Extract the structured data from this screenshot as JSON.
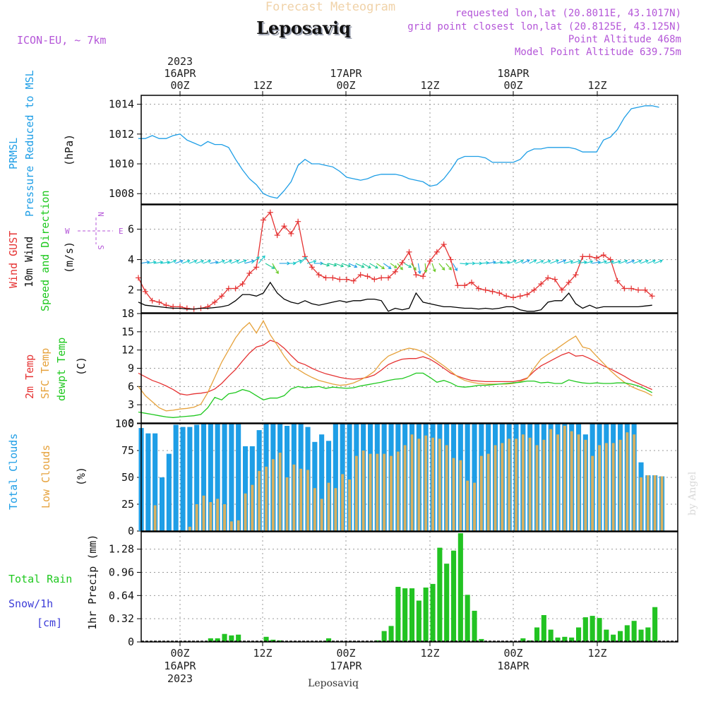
{
  "header": {
    "app_title": "Forecast Meteogram",
    "location": "Leposaviq",
    "model": "ICON-EU, ~ 7km",
    "requested": "requested lon,lat (20.8011E, 43.1017N)",
    "grid": "grid point closest lon,lat (20.8125E, 43.125N)",
    "point_alt": "Point Altitude 468m",
    "model_alt": "Model Point Altitude 639.75m",
    "footer": "Leposaviq",
    "credit": "by Angel"
  },
  "colors": {
    "pressure": "#1e9ee6",
    "gust": "#e53232",
    "wind": "#000000",
    "temp2m": "#e53232",
    "sfc": "#e6a23c",
    "dewpt": "#1ec81e",
    "total_clouds": "#1e9ee6",
    "low_clouds": "#d8b060",
    "rain": "#22c322",
    "snow": "#3c3cd8",
    "grid": "#999999"
  },
  "chart_data": [
    {
      "name": "prmsl",
      "type": "line",
      "ylabel": "(hPa)",
      "side_labels": [
        "PRMSL",
        "Pressure Reduced to MSL"
      ],
      "ylim": [
        1007.3,
        1014.6
      ],
      "yticks": [
        "1008",
        "1010",
        "1012",
        "1014"
      ],
      "ytick_values": [
        1008,
        1010,
        1012,
        1014
      ],
      "series": [
        {
          "name": "Pressure Reduced to MSL",
          "color_key": "pressure",
          "values": [
            1011.7,
            1011.7,
            1011.9,
            1011.7,
            1011.7,
            1011.9,
            1012.0,
            1011.6,
            1011.4,
            1011.2,
            1011.5,
            1011.3,
            1011.3,
            1011.1,
            1010.3,
            1009.6,
            1009.0,
            1008.6,
            1008.0,
            1007.8,
            1007.7,
            1008.2,
            1008.8,
            1009.9,
            1010.3,
            1010.0,
            1010.0,
            1009.9,
            1009.8,
            1009.5,
            1009.1,
            1009.0,
            1008.9,
            1009.0,
            1009.2,
            1009.3,
            1009.3,
            1009.3,
            1009.2,
            1009.0,
            1008.9,
            1008.8,
            1008.5,
            1008.6,
            1009.0,
            1009.6,
            1010.3,
            1010.5,
            1010.5,
            1010.5,
            1010.4,
            1010.1,
            1010.1,
            1010.1,
            1010.1,
            1010.3,
            1010.8,
            1011.0,
            1011.0,
            1011.1,
            1011.1,
            1011.1,
            1011.1,
            1011.0,
            1010.8,
            1010.8,
            1010.8,
            1011.6,
            1011.8,
            1012.3,
            1013.1,
            1013.7,
            1013.8,
            1013.9,
            1013.9,
            1013.8
          ]
        }
      ]
    },
    {
      "name": "wind",
      "type": "line",
      "ylabel": "(m/s)",
      "side_labels": [
        "Wind GUST",
        "10m Wind",
        "Speed and Direction"
      ],
      "compass": {
        "n": "N",
        "s": "S",
        "e": "E",
        "w": "W"
      },
      "ylim": [
        0.5,
        7.6
      ],
      "yticks": [
        "2",
        "4",
        "6"
      ],
      "ytick_values": [
        2,
        4,
        6
      ],
      "series": [
        {
          "name": "Wind GUST",
          "color_key": "gust",
          "values": [
            2.8,
            1.9,
            1.3,
            1.2,
            1.0,
            0.9,
            0.9,
            0.8,
            0.75,
            0.8,
            0.9,
            1.2,
            1.6,
            2.1,
            2.1,
            2.4,
            3.1,
            3.5,
            6.6,
            7.1,
            5.6,
            6.2,
            5.7,
            6.5,
            4.2,
            3.5,
            3.0,
            2.8,
            2.8,
            2.7,
            2.7,
            2.6,
            3.0,
            2.9,
            2.7,
            2.8,
            2.8,
            3.2,
            3.8,
            4.5,
            3.0,
            2.9,
            3.9,
            4.5,
            5.0,
            4.0,
            2.3,
            2.3,
            2.5,
            2.1,
            2.0,
            1.9,
            1.8,
            1.6,
            1.5,
            1.6,
            1.7,
            2.0,
            2.4,
            2.8,
            2.7,
            2.0,
            2.5,
            3.0,
            4.2,
            4.2,
            4.1,
            4.3,
            4.0,
            2.6,
            2.1,
            2.1,
            2.0,
            2.0,
            1.6
          ]
        },
        {
          "name": "10m Wind",
          "color_key": "wind",
          "values": [
            1.2,
            1.0,
            0.95,
            0.9,
            0.85,
            0.8,
            0.8,
            0.75,
            0.75,
            0.8,
            0.8,
            0.85,
            0.9,
            1.0,
            1.3,
            1.7,
            1.7,
            1.6,
            1.8,
            2.5,
            1.8,
            1.4,
            1.2,
            1.1,
            1.3,
            1.1,
            1.0,
            1.1,
            1.2,
            1.3,
            1.2,
            1.3,
            1.3,
            1.4,
            1.4,
            1.3,
            0.6,
            0.8,
            0.7,
            0.8,
            1.8,
            1.2,
            1.1,
            1.0,
            0.9,
            0.9,
            0.85,
            0.8,
            0.8,
            0.75,
            0.8,
            0.75,
            0.8,
            0.9,
            0.9,
            0.7,
            0.6,
            0.6,
            0.7,
            1.2,
            1.3,
            1.3,
            1.8,
            1.1,
            0.8,
            1.0,
            0.8,
            0.9,
            0.9,
            0.9,
            0.9,
            0.9,
            0.9,
            0.95,
            1.0
          ]
        }
      ],
      "direction_deg": [
        260,
        260,
        260,
        260,
        250,
        250,
        250,
        250,
        250,
        250,
        260,
        250,
        250,
        250,
        250,
        255,
        230,
        220,
        300,
        330,
        270,
        270,
        250,
        225,
        255,
        270,
        285,
        285,
        290,
        290,
        295,
        295,
        300,
        300,
        305,
        305,
        305,
        320,
        300,
        325,
        350,
        355,
        340,
        320,
        320,
        330,
        275,
        270,
        270,
        265,
        260,
        260,
        260,
        250,
        250,
        245,
        245,
        250,
        250,
        250,
        250,
        255,
        255,
        260,
        255,
        260,
        255,
        255,
        255,
        250,
        250,
        250,
        250,
        250,
        250
      ]
    },
    {
      "name": "temperature",
      "type": "line",
      "ylabel": "(C)",
      "side_labels": [
        "2m Temp",
        "SFC Temp",
        "dewpt Temp"
      ],
      "ylim": [
        0,
        18
      ],
      "yticks": [
        "0",
        "3",
        "6",
        "9",
        "12",
        "15",
        "18"
      ],
      "ytick_values": [
        0,
        3,
        6,
        9,
        12,
        15,
        18
      ],
      "series": [
        {
          "name": "2m Temp",
          "color_key": "temp2m",
          "values": [
            8.2,
            7.6,
            7.0,
            6.6,
            6.1,
            5.5,
            4.8,
            4.6,
            4.8,
            4.9,
            5.1,
            5.6,
            6.5,
            7.7,
            8.8,
            10.2,
            11.5,
            12.5,
            12.8,
            13.6,
            13.2,
            12.3,
            11.1,
            10.0,
            9.6,
            9.0,
            8.5,
            8.1,
            7.8,
            7.5,
            7.3,
            7.2,
            7.3,
            7.5,
            7.9,
            8.7,
            9.6,
            10.1,
            10.5,
            10.6,
            10.6,
            10.9,
            10.5,
            9.8,
            9.0,
            8.2,
            7.7,
            7.3,
            7.0,
            6.9,
            6.8,
            6.8,
            6.8,
            6.8,
            6.8,
            7.0,
            7.4,
            8.5,
            9.4,
            10.0,
            10.6,
            11.2,
            11.6,
            11.0,
            11.1,
            10.6,
            10.0,
            9.4,
            8.9,
            8.3,
            7.7,
            7.0,
            6.5,
            6.0,
            5.5
          ]
        },
        {
          "name": "SFC Temp",
          "color_key": "sfc",
          "values": [
            6.0,
            4.5,
            3.5,
            2.5,
            2.0,
            2.1,
            2.3,
            2.4,
            2.6,
            3.1,
            5.0,
            7.5,
            10.0,
            12.0,
            14.0,
            15.5,
            16.5,
            14.8,
            16.8,
            14.5,
            12.8,
            11.0,
            9.5,
            8.8,
            8.1,
            7.5,
            7.0,
            6.7,
            6.4,
            6.2,
            6.3,
            6.6,
            7.1,
            7.7,
            8.5,
            10.0,
            11.0,
            11.5,
            12.0,
            12.3,
            12.1,
            11.7,
            11.0,
            10.2,
            9.4,
            8.5,
            7.6,
            7.0,
            6.7,
            6.5,
            6.4,
            6.4,
            6.4,
            6.4,
            6.5,
            6.8,
            7.3,
            9.0,
            10.5,
            11.3,
            12.0,
            12.8,
            13.6,
            14.3,
            12.5,
            12.2,
            11.0,
            9.8,
            8.6,
            7.6,
            6.7,
            6.0,
            5.5,
            5.1,
            4.5
          ]
        },
        {
          "name": "dewpt Temp",
          "color_key": "dewpt",
          "values": [
            1.8,
            1.6,
            1.4,
            1.2,
            1.0,
            0.9,
            1.0,
            1.1,
            1.2,
            1.4,
            2.5,
            4.2,
            3.8,
            4.8,
            5.0,
            5.5,
            5.2,
            4.5,
            3.8,
            4.1,
            4.1,
            4.5,
            5.6,
            6.0,
            5.8,
            5.9,
            6.0,
            5.7,
            5.9,
            5.8,
            5.7,
            5.8,
            6.1,
            6.3,
            6.5,
            6.7,
            7.0,
            7.2,
            7.3,
            7.7,
            8.2,
            8.2,
            7.5,
            6.7,
            7.0,
            6.6,
            6.0,
            5.9,
            6.0,
            6.2,
            6.2,
            6.3,
            6.4,
            6.5,
            6.6,
            6.7,
            6.9,
            6.9,
            6.6,
            6.7,
            6.5,
            6.5,
            7.1,
            6.8,
            6.6,
            6.5,
            6.6,
            6.5,
            6.5,
            6.6,
            6.6,
            6.4,
            6.1,
            5.6,
            5.0
          ]
        }
      ]
    },
    {
      "name": "clouds",
      "type": "bar",
      "ylabel": "(%)",
      "side_labels": [
        "Total Clouds",
        "Low Clouds"
      ],
      "ylim": [
        0,
        100
      ],
      "yticks": [
        "0",
        "25",
        "50",
        "75",
        "100"
      ],
      "ytick_values": [
        0,
        25,
        50,
        75,
        100
      ],
      "series": [
        {
          "name": "Total Clouds",
          "color_key": "total_clouds",
          "values": [
            96,
            91,
            91,
            50,
            72,
            99,
            97,
            97,
            99,
            100,
            100,
            100,
            100,
            100,
            100,
            79,
            79,
            94,
            100,
            100,
            100,
            98,
            100,
            100,
            97,
            83,
            90,
            84,
            100,
            100,
            100,
            100,
            100,
            100,
            100,
            100,
            100,
            100,
            100,
            100,
            100,
            100,
            100,
            100,
            100,
            100,
            100,
            100,
            100,
            100,
            100,
            100,
            100,
            100,
            100,
            100,
            100,
            100,
            100,
            100,
            100,
            100,
            100,
            100,
            90,
            100,
            100,
            100,
            100,
            100,
            100,
            100,
            64,
            52,
            52,
            51
          ]
        },
        {
          "name": "Low Clouds",
          "color_key": "low_clouds",
          "values": [
            0,
            0,
            24,
            0,
            0,
            0,
            0,
            4,
            25,
            33,
            27,
            30,
            25,
            9,
            10,
            35,
            43,
            56,
            60,
            67,
            73,
            50,
            62,
            58,
            57,
            40,
            30,
            45,
            40,
            53,
            48,
            70,
            75,
            72,
            72,
            72,
            70,
            74,
            80,
            90,
            86,
            89,
            87,
            86,
            80,
            68,
            66,
            47,
            45,
            70,
            72,
            80,
            82,
            86,
            86,
            90,
            87,
            80,
            85,
            95,
            90,
            98,
            93,
            90,
            85,
            70,
            80,
            82,
            82,
            85,
            92,
            90,
            50,
            52,
            52,
            51
          ]
        }
      ]
    },
    {
      "name": "precip",
      "type": "bar",
      "ylabel": "1hr Precip (mm)",
      "side_labels": [
        "Total Rain",
        "Snow/1h",
        "[cm]"
      ],
      "ylim": [
        0,
        1.52
      ],
      "yticks": [
        "0",
        "0.32",
        "0.64",
        "0.96",
        "1.28"
      ],
      "ytick_values": [
        0,
        0.32,
        0.64,
        0.96,
        1.28
      ],
      "series": [
        {
          "name": "1hr Precip (mm)",
          "color_key": "rain",
          "values": [
            0,
            0,
            0,
            0,
            0,
            0,
            0,
            0,
            0,
            0,
            0.05,
            0.05,
            0.11,
            0.09,
            0.1,
            0,
            0,
            0,
            0.07,
            0.03,
            0.02,
            0,
            0,
            0,
            0,
            0,
            0,
            0.05,
            0,
            0,
            0,
            0,
            0,
            0,
            0.02,
            0.15,
            0.22,
            0.76,
            0.74,
            0.74,
            0.57,
            0.75,
            0.8,
            1.3,
            1.08,
            1.26,
            1.5,
            0.65,
            0.43,
            0.04,
            0,
            0,
            0,
            0,
            0,
            0.05,
            0.02,
            0.2,
            0.37,
            0.17,
            0.06,
            0.07,
            0.06,
            0.2,
            0.34,
            0.36,
            0.33,
            0.17,
            0.1,
            0.15,
            0.23,
            0.29,
            0.17,
            0.2,
            0.48
          ]
        }
      ]
    }
  ],
  "time_axis": {
    "top_labels": [
      {
        "line1": "2023",
        "line2": "16APR",
        "line3": "00Z"
      },
      {
        "line1": "",
        "line2": "",
        "line3": "12Z"
      },
      {
        "line1": "",
        "line2": "17APR",
        "line3": "00Z"
      },
      {
        "line1": "",
        "line2": "",
        "line3": "12Z"
      },
      {
        "line1": "",
        "line2": "18APR",
        "line3": "00Z"
      },
      {
        "line1": "",
        "line2": "",
        "line3": "12Z"
      }
    ],
    "bottom_labels": [
      {
        "line1": "00Z",
        "line2": "16APR",
        "line3": "2023"
      },
      {
        "line1": "12Z",
        "line2": "",
        "line3": ""
      },
      {
        "line1": "00Z",
        "line2": "17APR",
        "line3": ""
      },
      {
        "line1": "12Z",
        "line2": "",
        "line3": ""
      },
      {
        "line1": "00Z",
        "line2": "18APR",
        "line3": ""
      },
      {
        "line1": "12Z",
        "line2": "",
        "line3": ""
      }
    ]
  }
}
